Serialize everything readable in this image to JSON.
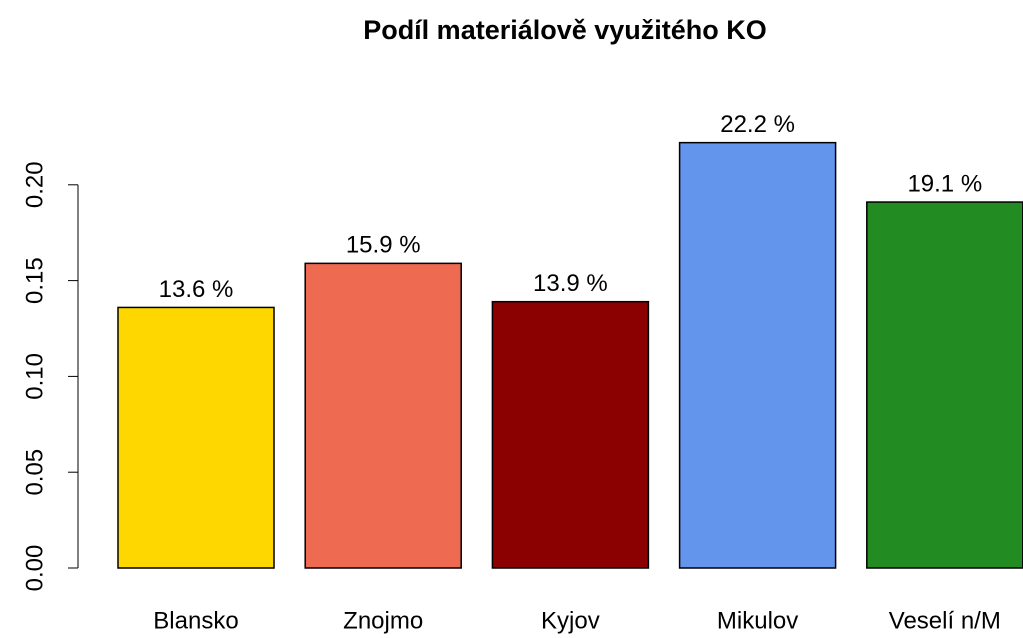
{
  "chart_data": {
    "type": "bar",
    "title": "Podíl materiálově využitého KO",
    "categories": [
      "Blansko",
      "Znojmo",
      "Kyjov",
      "Mikulov",
      "Veselí n/M"
    ],
    "values": [
      0.136,
      0.159,
      0.139,
      0.222,
      0.191
    ],
    "value_labels": [
      "13.6 %",
      "15.9 %",
      "13.9 %",
      "22.2 %",
      "19.1 %"
    ],
    "colors": [
      "#FFD700",
      "#EE6A50",
      "#8B0000",
      "#6495ED",
      "#228B22"
    ],
    "ylim": [
      0,
      0.25
    ],
    "yticks": [
      {
        "value": 0,
        "label": "0.00"
      },
      0.05,
      {
        "value": 0.1,
        "label": "0.10"
      },
      0.15,
      {
        "value": 0.2,
        "label": "0.20"
      }
    ],
    "grid": false
  }
}
